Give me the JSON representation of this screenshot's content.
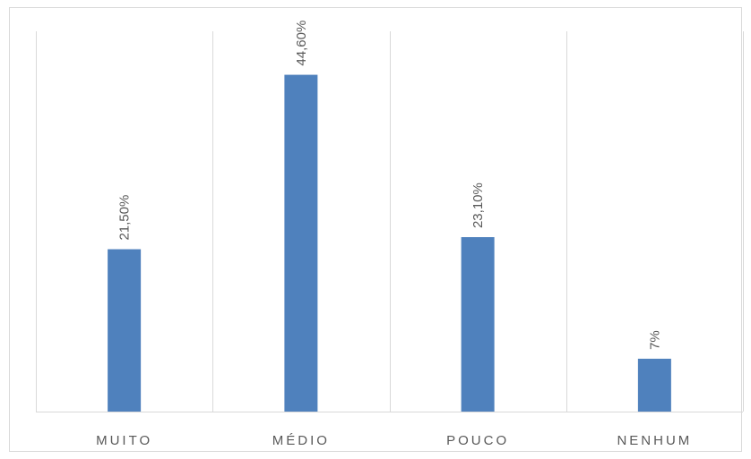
{
  "chart_data": {
    "type": "bar",
    "categories": [
      "MUITO",
      "MÉDIO",
      "POUCO",
      "NENHUM"
    ],
    "values": [
      21.5,
      44.6,
      23.1,
      7
    ],
    "data_labels": [
      "21,50%",
      "44,60%",
      "23,10%",
      "7%"
    ],
    "title": "",
    "xlabel": "",
    "ylabel": "",
    "ylim": [
      0,
      50
    ],
    "grid": "vertical category separators",
    "legend": "none",
    "colors": {
      "bar": "#4f81bd",
      "grid": "#d9d9d9",
      "text": "#595959"
    }
  }
}
